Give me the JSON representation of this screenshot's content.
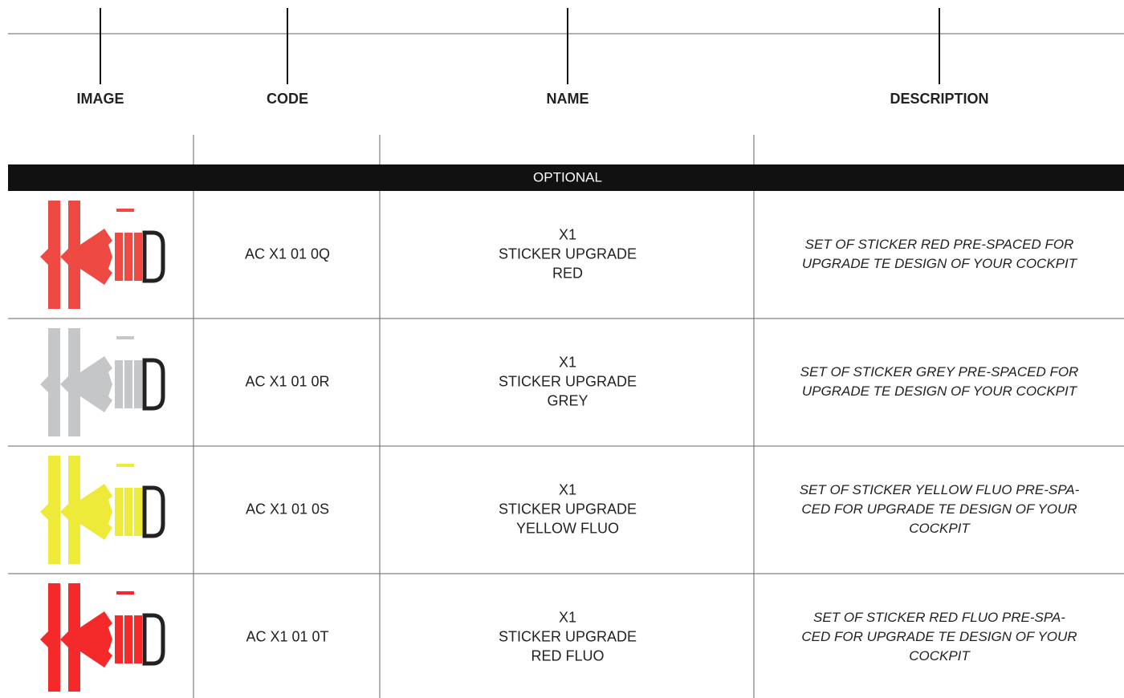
{
  "header": {
    "columns": [
      "IMAGE",
      "CODE",
      "NAME",
      "DESCRIPTION"
    ]
  },
  "section": "OPTIONAL",
  "rows": [
    {
      "image_color": "#ee4a43",
      "code": "AC X1 01 0Q",
      "name": [
        "X1",
        "STICKER UPGRADE",
        "RED"
      ],
      "description": [
        "SET OF STICKER RED PRE-SPACED FOR",
        "UPGRADE TE DESIGN OF YOUR COCKPIT"
      ]
    },
    {
      "image_color": "#c4c6c8",
      "code": "AC X1 01 0R",
      "name": [
        "X1",
        "STICKER UPGRADE",
        "GREY"
      ],
      "description": [
        "SET OF STICKER GREY PRE-SPACED FOR",
        "UPGRADE TE DESIGN OF YOUR COCKPIT"
      ]
    },
    {
      "image_color": "#eeea3a",
      "code": "AC X1 01 0S",
      "name": [
        "X1",
        "STICKER UPGRADE",
        "YELLOW FLUO"
      ],
      "description": [
        "SET OF STICKER YELLOW FLUO PRE-SPA-",
        "CED FOR UPGRADE TE DESIGN OF YOUR",
        "COCKPIT"
      ]
    },
    {
      "image_color": "#f42a2a",
      "code": "AC X1 01 0T",
      "name": [
        "X1",
        "STICKER UPGRADE",
        "RED FLUO"
      ],
      "description": [
        "SET OF STICKER RED FLUO PRE-SPA-",
        "CED FOR UPGRADE TE DESIGN OF YOUR",
        "COCKPIT"
      ]
    }
  ]
}
